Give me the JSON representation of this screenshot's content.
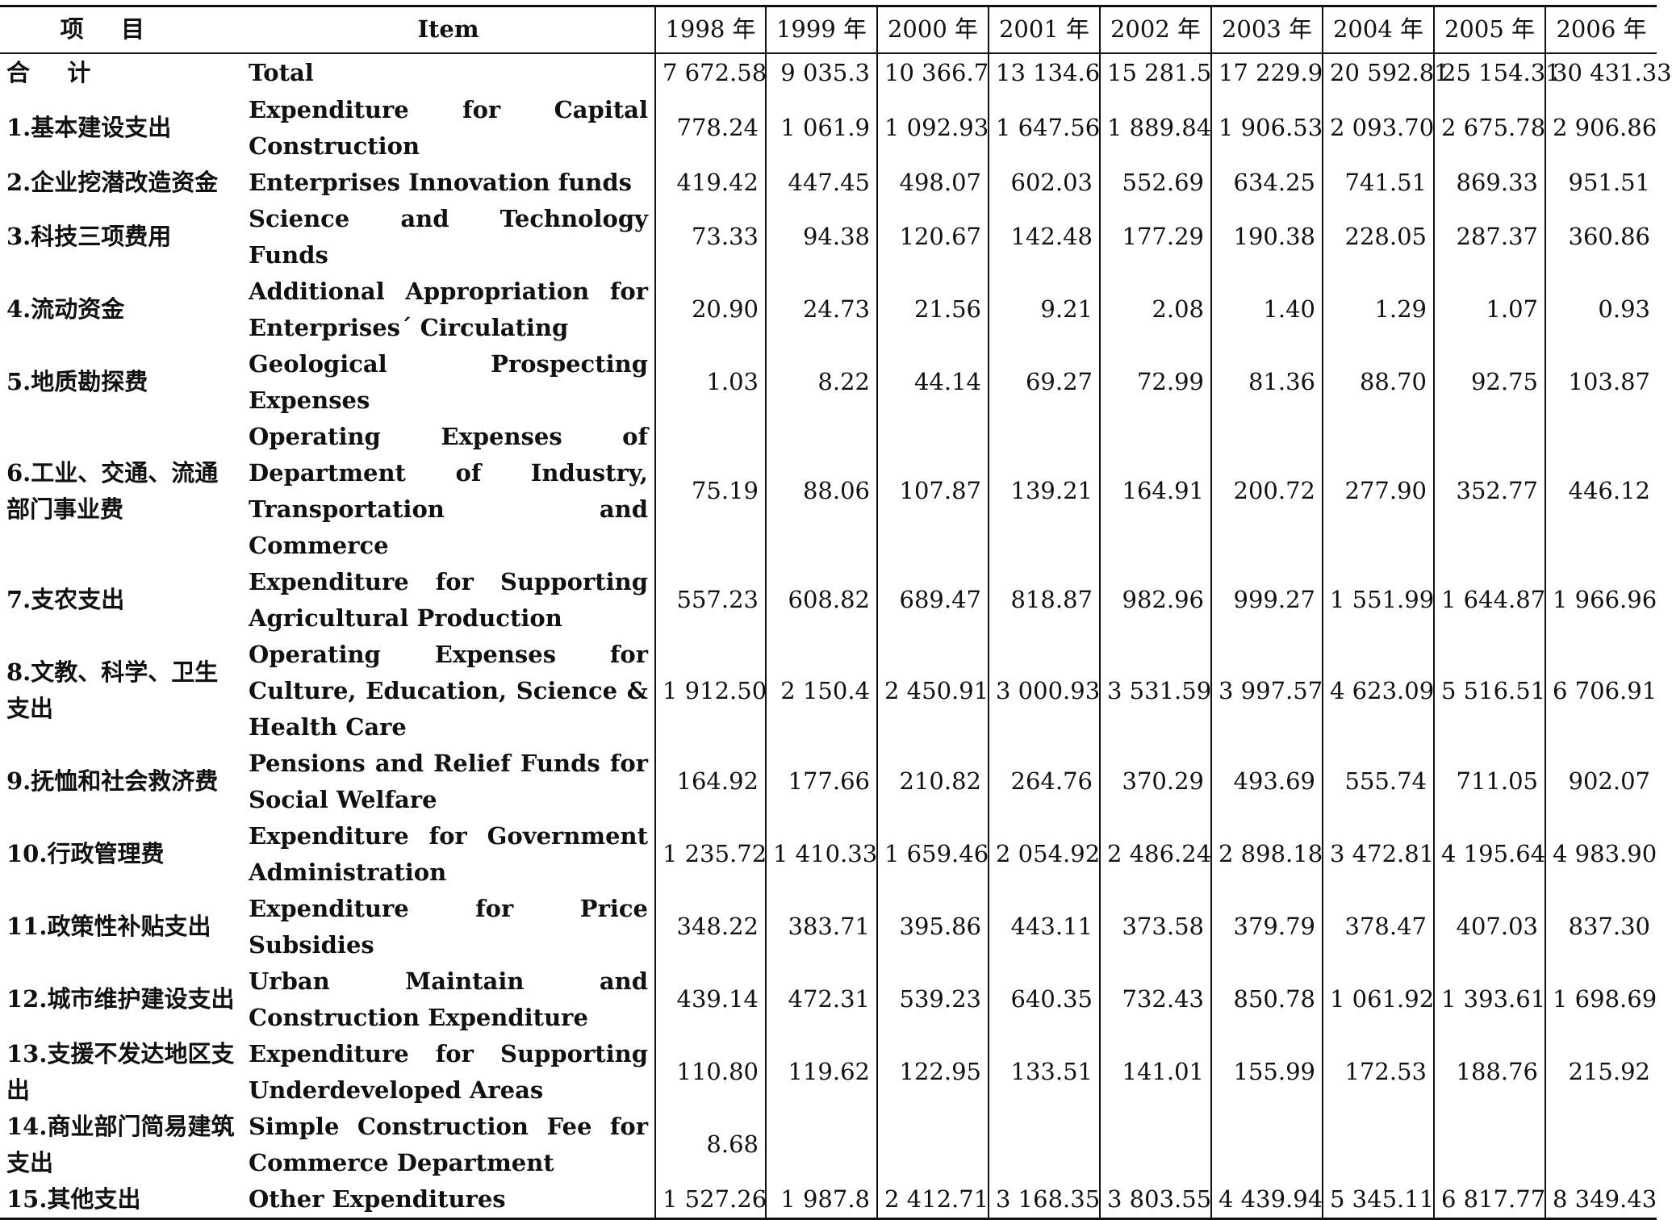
{
  "table": {
    "header": {
      "item_cn": "项目",
      "item_en": "Item",
      "years": [
        "1998 年",
        "1999 年",
        "2000 年",
        "2001 年",
        "2002 年",
        "2003 年",
        "2004 年",
        "2005 年",
        "2006 年"
      ]
    },
    "rows": [
      {
        "cn": "合计",
        "en": "Total",
        "values": [
          "7 672.58",
          "9 035.3",
          "10 366.7",
          "13 134.6",
          "15 281.5",
          "17 229.9",
          "20 592.81",
          "25 154.31",
          "30 431.33"
        ]
      },
      {
        "cn": "1.基本建设支出",
        "en": "Expenditure for Capital Construction",
        "values": [
          "778.24",
          "1 061.9",
          "1 092.93",
          "1 647.56",
          "1 889.84",
          "1 906.53",
          "2 093.70",
          "2 675.78",
          "2 906.86"
        ]
      },
      {
        "cn": "2.企业挖潜改造资金",
        "en": "Enterprises Innovation funds",
        "values": [
          "419.42",
          "447.45",
          "498.07",
          "602.03",
          "552.69",
          "634.25",
          "741.51",
          "869.33",
          "951.51"
        ]
      },
      {
        "cn": "3.科技三项费用",
        "en": "Science and Technology Funds",
        "values": [
          "73.33",
          "94.38",
          "120.67",
          "142.48",
          "177.29",
          "190.38",
          "228.05",
          "287.37",
          "360.86"
        ]
      },
      {
        "cn": "4.流动资金",
        "en": "Additional Appropriation for Enterprises´ Circulating",
        "values": [
          "20.90",
          "24.73",
          "21.56",
          "9.21",
          "2.08",
          "1.40",
          "1.29",
          "1.07",
          "0.93"
        ]
      },
      {
        "cn": "5.地质勘探费",
        "en": "Geological Prospecting Expenses",
        "values": [
          "1.03",
          "8.22",
          "44.14",
          "69.27",
          "72.99",
          "81.36",
          "88.70",
          "92.75",
          "103.87"
        ]
      },
      {
        "cn": "6.工业、交通、流通部门事业费",
        "en": "Operating Expenses of Department of Industry, Transportation and Commerce",
        "values": [
          "75.19",
          "88.06",
          "107.87",
          "139.21",
          "164.91",
          "200.72",
          "277.90",
          "352.77",
          "446.12"
        ]
      },
      {
        "cn": "7.支农支出",
        "en": "Expenditure for Supporting Agricultural Production",
        "values": [
          "557.23",
          "608.82",
          "689.47",
          "818.87",
          "982.96",
          "999.27",
          "1 551.99",
          "1 644.87",
          "1 966.96"
        ]
      },
      {
        "cn": "8.文教、科学、卫生支出",
        "en": "Operating Expenses for Culture, Education, Science & Health Care",
        "values": [
          "1 912.50",
          "2 150.4",
          "2 450.91",
          "3 000.93",
          "3 531.59",
          "3 997.57",
          "4 623.09",
          "5 516.51",
          "6 706.91"
        ]
      },
      {
        "cn": "9.抚恤和社会救济费",
        "en": "Pensions and Relief Funds for Social Welfare",
        "values": [
          "164.92",
          "177.66",
          "210.82",
          "264.76",
          "370.29",
          "493.69",
          "555.74",
          "711.05",
          "902.07"
        ]
      },
      {
        "cn": "10.行政管理费",
        "en": "Expenditure for Government Administration",
        "values": [
          "1 235.72",
          "1 410.33",
          "1 659.46",
          "2 054.92",
          "2 486.24",
          "2 898.18",
          "3 472.81",
          "4 195.64",
          "4 983.90"
        ]
      },
      {
        "cn": "11.政策性补贴支出",
        "en": "Expenditure for Price Subsidies",
        "values": [
          "348.22",
          "383.71",
          "395.86",
          "443.11",
          "373.58",
          "379.79",
          "378.47",
          "407.03",
          "837.30"
        ]
      },
      {
        "cn": "12.城市维护建设支出",
        "en": "Urban Maintain and Construction Expenditure",
        "values": [
          "439.14",
          "472.31",
          "539.23",
          "640.35",
          "732.43",
          "850.78",
          "1 061.92",
          "1 393.61",
          "1 698.69"
        ]
      },
      {
        "cn": "13.支援不发达地区支出",
        "en": "Expenditure for Supporting Underdeveloped Areas",
        "values": [
          "110.80",
          "119.62",
          "122.95",
          "133.51",
          "141.01",
          "155.99",
          "172.53",
          "188.76",
          "215.92"
        ]
      },
      {
        "cn": "14.商业部门简易建筑支出",
        "en": "Simple Construction Fee for Commerce Department",
        "values": [
          "8.68",
          "",
          "",
          "",
          "",
          "",
          "",
          "",
          ""
        ]
      },
      {
        "cn": "15.其他支出",
        "en": "Other Expenditures",
        "values": [
          "1 527.26",
          "1 987.8",
          "2 412.71",
          "3 168.35",
          "3 803.55",
          "4 439.94",
          "5 345.11",
          "6 817.77",
          "8 349.43"
        ]
      }
    ]
  }
}
